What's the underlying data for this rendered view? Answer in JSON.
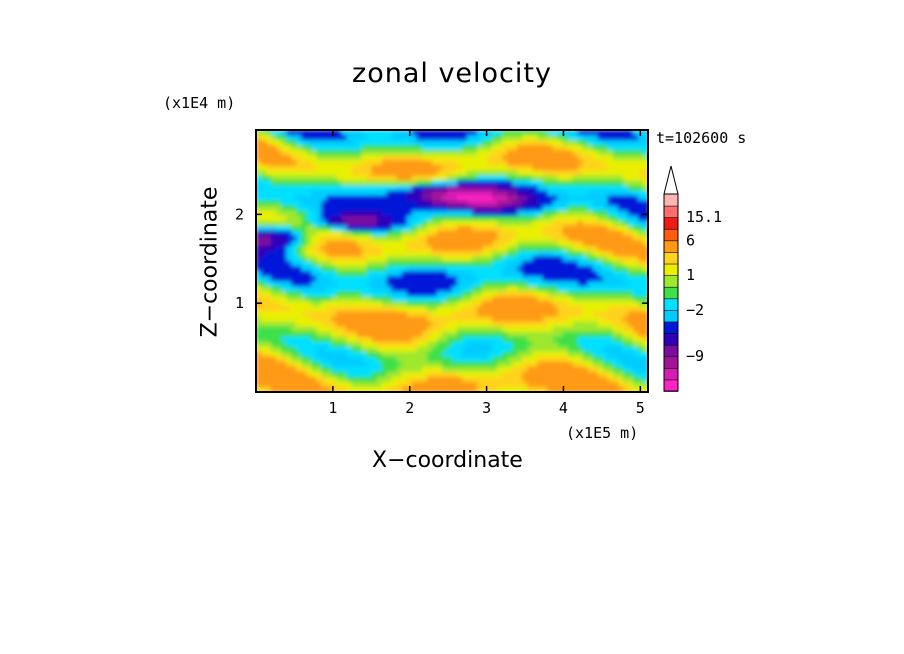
{
  "chart_data": {
    "type": "heatmap",
    "title": "zonal velocity",
    "xlabel": "X−coordinate",
    "ylabel": "Z−coordinate",
    "x_unit_label": "(x1E5 m)",
    "y_unit_label": "(x1E4 m)",
    "annotation": "t=102600 s",
    "xlim": [
      0,
      5.1
    ],
    "ylim": [
      0,
      2.95
    ],
    "x_ticks": [
      "1",
      "2",
      "3",
      "4",
      "5"
    ],
    "y_ticks": [
      "1",
      "2"
    ],
    "colorbar": {
      "labels": [
        "15.1",
        "6",
        "1",
        "−2",
        "−9"
      ],
      "label_values": [
        15.1,
        6,
        1,
        -2,
        -9
      ],
      "levels": [
        -13,
        -11,
        -9,
        -7,
        -5,
        -3,
        -2,
        -1,
        0,
        1,
        2,
        3,
        6,
        9,
        12,
        15.1
      ],
      "colors": [
        "#ff22c4",
        "#d61cb2",
        "#a21496",
        "#7a0da0",
        "#2f00b8",
        "#0018d8",
        "#00ccff",
        "#00e0ff",
        "#3ee04a",
        "#9ee82e",
        "#e8f000",
        "#ffd21e",
        "#ff9a14",
        "#ff5c10",
        "#ee1c14",
        "#ff6e6e",
        "#ffb4b4",
        "#ffffff"
      ]
    },
    "field_description_levels": "contour-filled zonal velocity field",
    "grid": false
  }
}
